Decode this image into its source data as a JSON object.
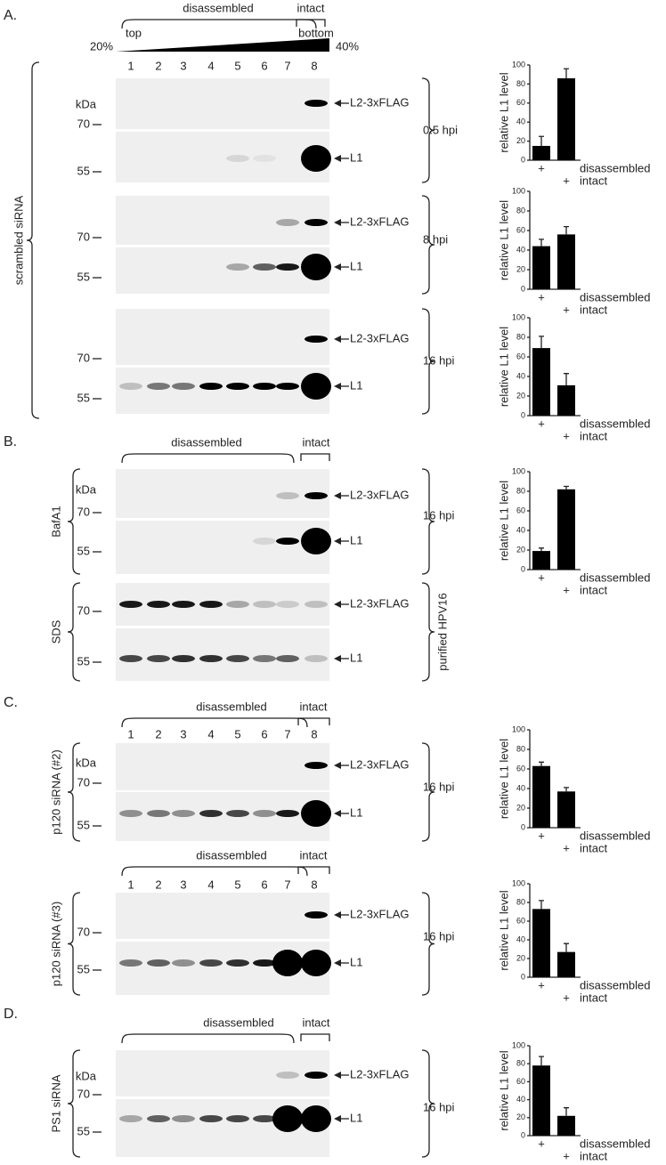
{
  "panels": [
    {
      "letter": "A.",
      "headers": [
        {
          "group1": "disassembled",
          "group2": "intact",
          "gradient": {
            "top": "top",
            "bottom": "bottom",
            "low": "20%",
            "high": "40%"
          },
          "lanes": [
            1,
            2,
            3,
            4,
            5,
            6,
            7,
            8
          ]
        }
      ],
      "side_labels": [
        "scrambled siRNA"
      ],
      "blots": [
        {
          "kda": "kDa",
          "markers": [
            70,
            55
          ],
          "bands": [
            "L2-3xFLAG",
            "L1"
          ],
          "condition": "0.5 hpi"
        },
        {
          "markers": [
            70,
            55
          ],
          "bands": [
            "L2-3xFLAG",
            "L1"
          ],
          "condition": "8 hpi"
        },
        {
          "markers": [
            70,
            55
          ],
          "bands": [
            "L2-3xFLAG",
            "L1"
          ],
          "condition": "16 hpi"
        }
      ]
    },
    {
      "letter": "B.",
      "headers": [
        {
          "group1": "disassembled",
          "group2": "intact"
        }
      ],
      "side_labels": [
        "BafA1",
        "SDS"
      ],
      "blots": [
        {
          "kda": "kDa",
          "markers": [
            70,
            55
          ],
          "bands": [
            "L2-3xFLAG",
            "L1"
          ],
          "condition": "16 hpi"
        },
        {
          "markers": [
            70,
            55
          ],
          "bands": [
            "L2-3xFLAG",
            "L1"
          ],
          "condition": "purified HPV16"
        }
      ]
    },
    {
      "letter": "C.",
      "headers": [
        {
          "group1": "disassembled",
          "group2": "intact",
          "lanes": [
            1,
            2,
            3,
            4,
            5,
            6,
            7,
            8
          ]
        },
        {
          "group1": "disassembled",
          "group2": "intact",
          "lanes": [
            1,
            2,
            3,
            4,
            5,
            6,
            7,
            8
          ]
        }
      ],
      "side_labels": [
        "p120 siRNA (#2)",
        "p120 siRNA (#3)"
      ],
      "blots": [
        {
          "kda": "kDa",
          "markers": [
            70,
            55
          ],
          "bands": [
            "L2-3xFLAG",
            "L1"
          ],
          "condition": "16 hpi"
        },
        {
          "markers": [
            70,
            55
          ],
          "bands": [
            "L2-3xFLAG",
            "L1"
          ],
          "condition": "16 hpi"
        }
      ]
    },
    {
      "letter": "D.",
      "headers": [
        {
          "group1": "disassembled",
          "group2": "intact"
        }
      ],
      "side_labels": [
        "PS1 siRNA"
      ],
      "blots": [
        {
          "kda": "kDa",
          "markers": [
            70,
            55
          ],
          "bands": [
            "L2-3xFLAG",
            "L1"
          ],
          "condition": "16 hpi"
        }
      ]
    }
  ],
  "chart_data": [
    {
      "type": "bar",
      "ylabel": "relative L1 level",
      "categories": [
        "disassembled",
        "intact"
      ],
      "x_markers": [
        "+",
        "+"
      ],
      "values": [
        15,
        86
      ],
      "errors": [
        10,
        10
      ],
      "color": "#000000",
      "ylim": [
        0,
        100
      ],
      "yticks": [
        0,
        20,
        40,
        60,
        80,
        100
      ]
    },
    {
      "type": "bar",
      "ylabel": "relative L1 level",
      "categories": [
        "disassembled",
        "intact"
      ],
      "x_markers": [
        "+",
        "+"
      ],
      "values": [
        44,
        56
      ],
      "errors": [
        7,
        8
      ],
      "color": "#000000",
      "ylim": [
        0,
        100
      ],
      "yticks": [
        0,
        20,
        40,
        60,
        80,
        100
      ]
    },
    {
      "type": "bar",
      "ylabel": "relative L1 level",
      "categories": [
        "disassembled",
        "intact"
      ],
      "x_markers": [
        "+",
        "+"
      ],
      "values": [
        69,
        31
      ],
      "errors": [
        12,
        12
      ],
      "color": "#000000",
      "ylim": [
        0,
        100
      ],
      "yticks": [
        0,
        20,
        40,
        60,
        80,
        100
      ]
    },
    {
      "type": "bar",
      "ylabel": "relative L1 level",
      "categories": [
        "disassembled",
        "intact"
      ],
      "x_markers": [
        "+",
        "+"
      ],
      "values": [
        19,
        82
      ],
      "errors": [
        3,
        3
      ],
      "color": "#000000",
      "ylim": [
        0,
        100
      ],
      "yticks": [
        0,
        20,
        40,
        60,
        80,
        100
      ]
    },
    {
      "type": "bar",
      "ylabel": "relative L1 level",
      "categories": [
        "disassembled",
        "intact"
      ],
      "x_markers": [
        "+",
        "+"
      ],
      "values": [
        63,
        37
      ],
      "errors": [
        4,
        4
      ],
      "color": "#000000",
      "ylim": [
        0,
        100
      ],
      "yticks": [
        0,
        20,
        40,
        60,
        80,
        100
      ]
    },
    {
      "type": "bar",
      "ylabel": "relative L1 level",
      "categories": [
        "disassembled",
        "intact"
      ],
      "x_markers": [
        "+",
        "+"
      ],
      "values": [
        73,
        27
      ],
      "errors": [
        9,
        9
      ],
      "color": "#000000",
      "ylim": [
        0,
        100
      ],
      "yticks": [
        0,
        20,
        40,
        60,
        80,
        100
      ]
    },
    {
      "type": "bar",
      "ylabel": "relative L1 level",
      "categories": [
        "disassembled",
        "intact"
      ],
      "x_markers": [
        "+",
        "+"
      ],
      "values": [
        78,
        22
      ],
      "errors": [
        10,
        9
      ],
      "color": "#000000",
      "ylim": [
        0,
        100
      ],
      "yticks": [
        0,
        20,
        40,
        60,
        80,
        100
      ]
    }
  ]
}
